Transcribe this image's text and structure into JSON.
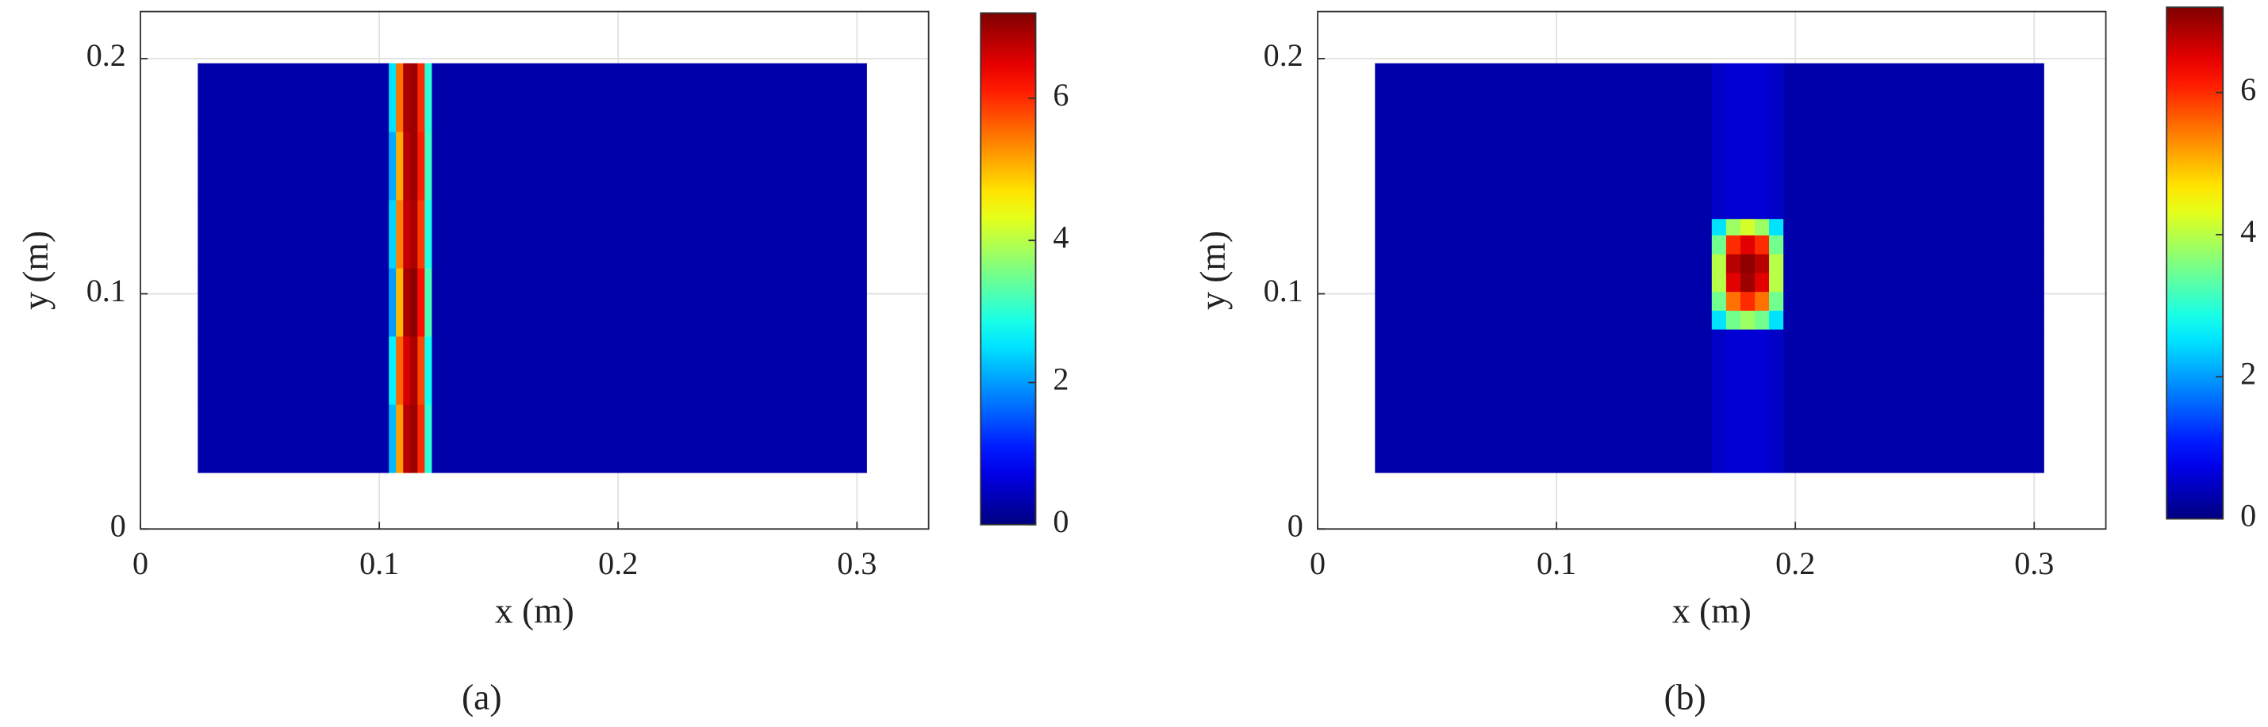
{
  "chart_data": [
    {
      "type": "heatmap",
      "caption": "(a)",
      "xlabel": "x (m)",
      "ylabel": "y (m)",
      "xlim": [
        0,
        0.33
      ],
      "ylim": [
        0,
        0.22
      ],
      "xticks": [
        0,
        0.1,
        0.2,
        0.3
      ],
      "yticks": [
        0,
        0.1,
        0.2
      ],
      "grid": true,
      "x_edges": [
        0.024,
        0.104,
        0.107,
        0.11,
        0.113,
        0.116,
        0.119,
        0.122,
        0.304
      ],
      "y_edges": [
        0.024,
        0.053,
        0.082,
        0.111,
        0.14,
        0.169,
        0.198
      ],
      "z": [
        [
          0.3,
          2.2,
          5.2,
          6.8,
          7.0,
          6.0,
          3.0,
          0.3
        ],
        [
          0.3,
          2.6,
          5.6,
          6.6,
          6.9,
          5.8,
          2.8,
          0.3
        ],
        [
          0.3,
          2.0,
          5.0,
          6.9,
          7.1,
          6.2,
          3.2,
          0.3
        ],
        [
          0.3,
          2.4,
          5.4,
          6.7,
          6.9,
          5.9,
          2.9,
          0.3
        ],
        [
          0.3,
          2.1,
          5.1,
          6.8,
          7.0,
          6.1,
          3.1,
          0.3
        ],
        [
          0.3,
          2.5,
          5.5,
          6.9,
          7.0,
          6.0,
          3.0,
          0.3
        ]
      ],
      "colormap": "jet",
      "clim": [
        0,
        7.2
      ],
      "cticks": [
        0,
        2,
        4,
        6
      ]
    },
    {
      "type": "heatmap",
      "caption": "(b)",
      "xlabel": "x (m)",
      "ylabel": "y (m)",
      "xlim": [
        0,
        0.33
      ],
      "ylim": [
        0,
        0.22
      ],
      "xticks": [
        0,
        0.1,
        0.2,
        0.3
      ],
      "yticks": [
        0,
        0.1,
        0.2
      ],
      "grid": true,
      "x_edges": [
        0.024,
        0.165,
        0.171,
        0.177,
        0.183,
        0.189,
        0.195,
        0.304
      ],
      "y_edges": [
        0.024,
        0.085,
        0.093,
        0.101,
        0.109,
        0.117,
        0.125,
        0.132,
        0.198
      ],
      "z": [
        [
          0.3,
          0.5,
          0.6,
          0.6,
          0.6,
          0.5,
          0.3
        ],
        [
          0.3,
          2.5,
          3.5,
          3.8,
          3.5,
          2.5,
          0.3
        ],
        [
          0.3,
          3.5,
          5.5,
          6.0,
          5.5,
          3.5,
          0.3
        ],
        [
          0.3,
          4.0,
          6.5,
          7.0,
          6.5,
          4.0,
          0.3
        ],
        [
          0.3,
          4.0,
          6.8,
          7.1,
          6.8,
          4.0,
          0.3
        ],
        [
          0.3,
          3.5,
          6.0,
          6.5,
          6.0,
          3.5,
          0.3
        ],
        [
          0.3,
          2.5,
          3.8,
          4.2,
          3.8,
          2.5,
          0.3
        ],
        [
          0.3,
          0.5,
          0.6,
          0.6,
          0.6,
          0.5,
          0.3
        ]
      ],
      "colormap": "jet",
      "clim": [
        0,
        7.2
      ],
      "cticks": [
        0,
        2,
        4,
        6
      ]
    }
  ]
}
